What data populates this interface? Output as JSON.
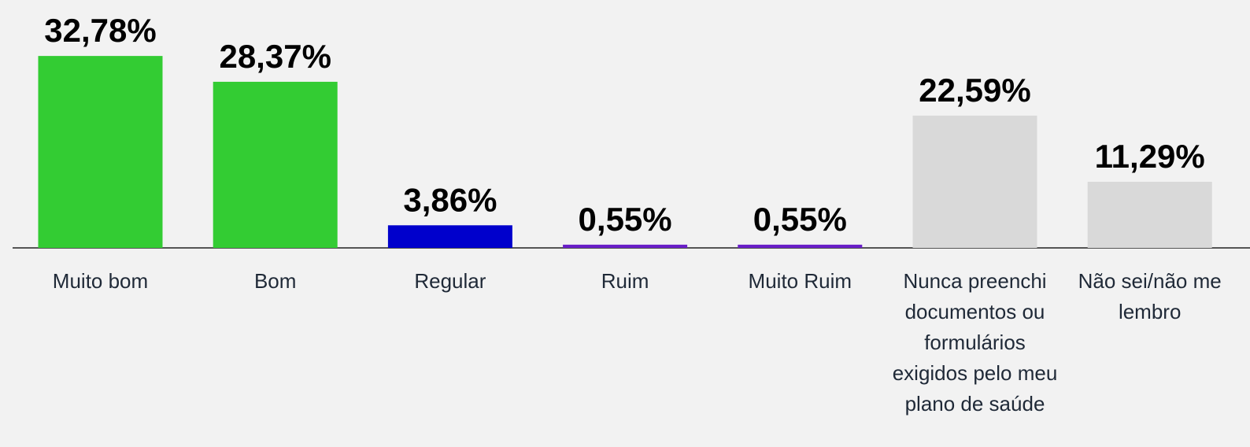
{
  "chart_data": {
    "type": "bar",
    "categories": [
      "Muito bom",
      "Bom",
      "Regular",
      "Ruim",
      "Muito Ruim",
      "Nunca preenchi documentos ou formulários exigidos pelo meu plano de saúde",
      "Não sei/não me lembro"
    ],
    "values": [
      32.78,
      28.37,
      3.86,
      0.55,
      0.55,
      22.59,
      11.29
    ],
    "value_labels": [
      "32,78%",
      "28,37%",
      "3,86%",
      "0,55%",
      "0,55%",
      "22,59%",
      "11,29%"
    ],
    "colors": [
      "#33cc33",
      "#33cc33",
      "#0000cc",
      "#6a1fc8",
      "#6a1fc8",
      "#d9d9d9",
      "#d9d9d9"
    ]
  }
}
